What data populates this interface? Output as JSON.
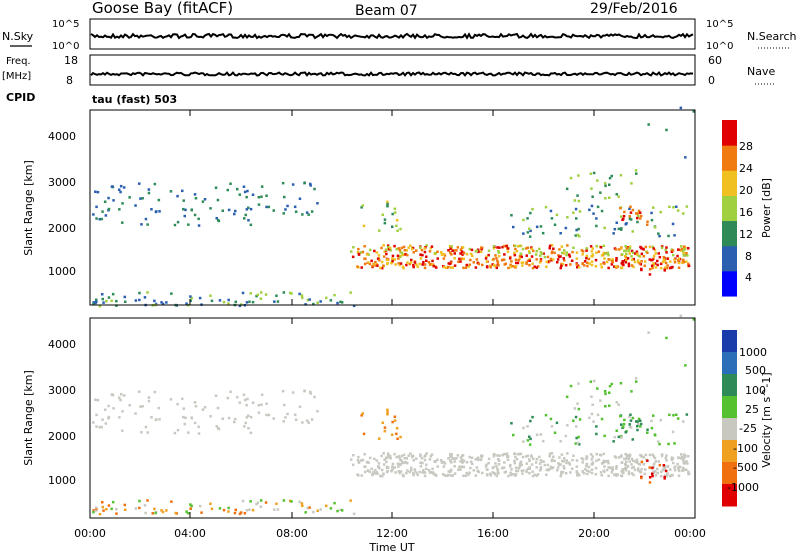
{
  "header": {
    "station": "Goose Bay (fitACF)",
    "beam": "Beam 07",
    "date": "29/Feb/2016"
  },
  "top_panel": {
    "left_label": "N.Sky",
    "right_label": "N.Search",
    "left_ticks": [
      "10^5",
      "10^0"
    ],
    "right_ticks": [
      "10^5",
      "10^0"
    ]
  },
  "freq_panel": {
    "left_label_1": "Freq.",
    "left_label_2": "[MHz]",
    "right_label": "Nave",
    "left_ticks": [
      "18",
      "8"
    ],
    "right_ticks": [
      "60",
      "0"
    ],
    "cpid_label": "CPID",
    "mode_label": "tau (fast) 503"
  },
  "chart_data": [
    {
      "type": "heatmap",
      "name": "power",
      "ylabel": "Slant Range [km]",
      "y_ticks": [
        "4000",
        "3000",
        "2000",
        "1000"
      ],
      "xlabel": "Time UT",
      "x_ticks": [
        "00:00",
        "04:00",
        "08:00",
        "12:00",
        "16:00",
        "20:00",
        "00:00"
      ],
      "colorbar_label": "Power [dB]",
      "colorbar_ticks": [
        "28",
        "24",
        "20",
        "16",
        "12",
        "8",
        "4"
      ],
      "colors": [
        "#0000ff",
        "#2a5fb0",
        "#2e8b57",
        "#a0d040",
        "#f0c020",
        "#f07a10",
        "#e00000"
      ]
    },
    {
      "type": "heatmap",
      "name": "velocity",
      "ylabel": "Slant Range [km]",
      "y_ticks": [
        "4000",
        "3000",
        "2000",
        "1000"
      ],
      "xlabel": "Time UT",
      "x_ticks": [
        "00:00",
        "04:00",
        "08:00",
        "12:00",
        "16:00",
        "20:00",
        "00:00"
      ],
      "colorbar_label": "Velocity [m s^-1]",
      "colorbar_ticks": [
        "1000",
        "500",
        "100",
        "25",
        "-25",
        "-100",
        "-500",
        "-1000"
      ],
      "colors": [
        "#1a3caa",
        "#2a6fb8",
        "#2e8b57",
        "#55c030",
        "#c8c8c0",
        "#f0a020",
        "#f07010",
        "#e00000"
      ]
    }
  ]
}
